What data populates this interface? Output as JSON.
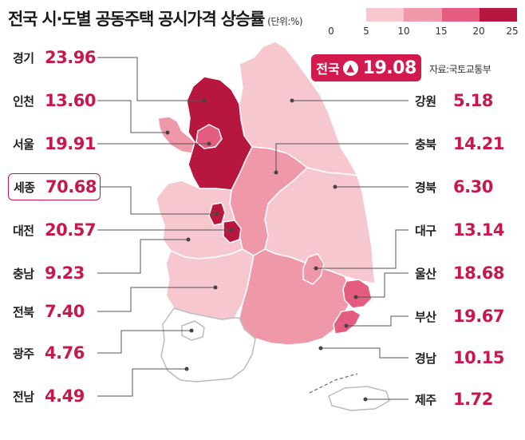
{
  "title": "전국 시·도별 공동주택 공시가격 상승률",
  "unit": "(단위:%)",
  "source": "자료:국토교통부",
  "legend": {
    "colors": [
      "#ffffff",
      "#f6c7cf",
      "#ef98a9",
      "#e45c7f",
      "#b7163f"
    ],
    "ticks": [
      "0",
      "5",
      "10",
      "15",
      "20",
      "25"
    ]
  },
  "national": {
    "name": "전국",
    "value": "19.08"
  },
  "regions": {
    "gyeonggi": {
      "name": "경기",
      "value": "23.96",
      "color": "#b7163f"
    },
    "incheon": {
      "name": "인천",
      "value": "13.60",
      "color": "#ef98a9"
    },
    "seoul": {
      "name": "서울",
      "value": "19.91",
      "color": "#e45c7f"
    },
    "sejong": {
      "name": "세종",
      "value": "70.68",
      "color": "#b7163f"
    },
    "daejeon": {
      "name": "대전",
      "value": "20.57",
      "color": "#b7163f"
    },
    "chungnam": {
      "name": "충남",
      "value": "9.23",
      "color": "#f6c7cf"
    },
    "jeonbuk": {
      "name": "전북",
      "value": "7.40",
      "color": "#f6c7cf"
    },
    "gwangju": {
      "name": "광주",
      "value": "4.76",
      "color": "#ffffff"
    },
    "jeonnam": {
      "name": "전남",
      "value": "4.49",
      "color": "#ffffff"
    },
    "gangwon": {
      "name": "강원",
      "value": "5.18",
      "color": "#f6c7cf"
    },
    "chungbuk": {
      "name": "충북",
      "value": "14.21",
      "color": "#ef98a9"
    },
    "gyeongbuk": {
      "name": "경북",
      "value": "6.30",
      "color": "#f6c7cf"
    },
    "daegu": {
      "name": "대구",
      "value": "13.14",
      "color": "#ef98a9"
    },
    "ulsan": {
      "name": "울산",
      "value": "18.68",
      "color": "#e45c7f"
    },
    "busan": {
      "name": "부산",
      "value": "19.67",
      "color": "#e45c7f"
    },
    "gyeongnam": {
      "name": "경남",
      "value": "10.15",
      "color": "#ef98a9"
    },
    "jeju": {
      "name": "제주",
      "value": "1.72",
      "color": "#ffffff"
    }
  }
}
